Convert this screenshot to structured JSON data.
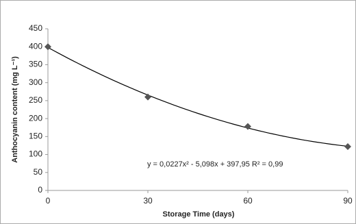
{
  "chart_data": {
    "type": "scatter",
    "x_label": "Storage Time (days)",
    "y_label": "Anthocyanin content (mg L⁻¹)",
    "x": [
      0,
      30,
      60,
      90
    ],
    "values": [
      400,
      260,
      178,
      122
    ],
    "color": "#555555",
    "xlim": [
      0,
      90
    ],
    "xticks": [
      0,
      30,
      60,
      90
    ],
    "ylim": [
      0,
      450
    ],
    "yticks": [
      0,
      50,
      100,
      150,
      200,
      250,
      300,
      350,
      400,
      450
    ],
    "grid": false,
    "trendline": {
      "type": "polynomial",
      "coefficients": [
        0.0227,
        -5.098,
        397.95
      ],
      "r2": 0.99,
      "color": "#000000",
      "equation": "y = 0,0227x² - 5,098x + 397,95 R² = 0,99"
    }
  }
}
